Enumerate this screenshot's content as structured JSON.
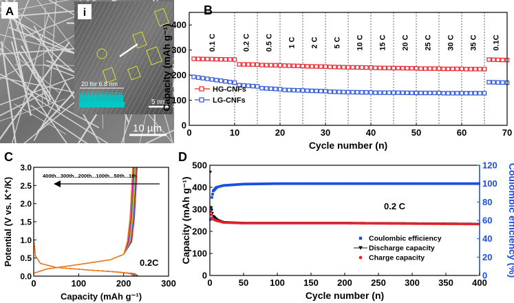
{
  "panels": {
    "A": {
      "label": "A",
      "scale_bar": "10 µm"
    },
    "inset": {
      "label": "i",
      "measure_text": "20 for 6.8 nm",
      "scale_bar": "5 nm"
    }
  },
  "chart_data": [
    {
      "id": "B",
      "type": "scatter",
      "panel_label": "B",
      "xlabel": "Cycle number (n)",
      "ylabel": "Capacity (mAh g⁻¹)",
      "xlim": [
        0,
        70
      ],
      "ylim": [
        0,
        450
      ],
      "xticks": [
        0,
        10,
        20,
        30,
        40,
        50,
        60,
        70
      ],
      "yticks": [
        0,
        100,
        200,
        300,
        400
      ],
      "rates": [
        "0.1 C",
        "0.2 C",
        "0.5 C",
        "1 C",
        "2 C",
        "5 C",
        "10 C",
        "15 C",
        "20 C",
        "25 C",
        "30 C",
        "35 C",
        "0.1C"
      ],
      "dividers": [
        10,
        15,
        20,
        25,
        30,
        35,
        40,
        45,
        50,
        55,
        60,
        65
      ],
      "series": [
        {
          "name": "HG-CNFs",
          "color": "#e8202a",
          "segments": [
            [
              1,
              265
            ],
            [
              10,
              262
            ],
            [
              11,
              243
            ],
            [
              15,
              242
            ],
            [
              16,
              240
            ],
            [
              20,
              239
            ],
            [
              21,
              238
            ],
            [
              25,
              236
            ],
            [
              26,
              235
            ],
            [
              30,
              234
            ],
            [
              31,
              233
            ],
            [
              35,
              231
            ],
            [
              36,
              231
            ],
            [
              40,
              230
            ],
            [
              41,
              229
            ],
            [
              45,
              228
            ],
            [
              46,
              228
            ],
            [
              50,
              227
            ],
            [
              51,
              226
            ],
            [
              55,
              226
            ],
            [
              56,
              225
            ],
            [
              60,
              225
            ],
            [
              61,
              224
            ],
            [
              65,
              224
            ],
            [
              66,
              262
            ],
            [
              70,
              260
            ]
          ]
        },
        {
          "name": "LG-CNFs",
          "color": "#2a52d8",
          "segments": [
            [
              1,
              193
            ],
            [
              10,
              170
            ],
            [
              11,
              160
            ],
            [
              15,
              155
            ],
            [
              16,
              148
            ],
            [
              20,
              144
            ],
            [
              21,
              141
            ],
            [
              25,
              139
            ],
            [
              26,
              138
            ],
            [
              30,
              136
            ],
            [
              31,
              134
            ],
            [
              35,
              132
            ],
            [
              36,
              132
            ],
            [
              40,
              131
            ],
            [
              41,
              130
            ],
            [
              45,
              130
            ],
            [
              46,
              130
            ],
            [
              50,
              129
            ],
            [
              51,
              129
            ],
            [
              55,
              129
            ],
            [
              56,
              128
            ],
            [
              60,
              128
            ],
            [
              61,
              128
            ],
            [
              65,
              128
            ],
            [
              66,
              172
            ],
            [
              70,
              170
            ]
          ]
        }
      ]
    },
    {
      "id": "C",
      "type": "line",
      "panel_label": "C",
      "xlabel": "Capacity (mAh g⁻¹)",
      "ylabel": "Potential (V vs. K⁺/K)",
      "xlim": [
        0,
        300
      ],
      "ylim": [
        0,
        3.0
      ],
      "xticks": [
        0,
        100,
        200,
        300
      ],
      "yticks": [
        0.0,
        0.5,
        1.0,
        1.5,
        2.0,
        2.5,
        3.0
      ],
      "arrow_text": "400th...300th...200th...100th...50th...1th",
      "annotation": "0.2C",
      "series_colors": [
        "#e8202a",
        "#2a52d8",
        "#f0c000",
        "#2aa02a",
        "#e000c8",
        "#ff8000"
      ]
    },
    {
      "id": "D",
      "type": "scatter",
      "panel_label": "D",
      "xlabel": "Cycle number (n)",
      "ylabel_left": "Capacity (mAh g⁻¹)",
      "ylabel_right": "Coulombic efficiency (%)",
      "xlim": [
        0,
        400
      ],
      "ylim_left": [
        0,
        500
      ],
      "ylim_right": [
        0,
        120
      ],
      "xticks": [
        0,
        50,
        100,
        150,
        200,
        250,
        300,
        350,
        400
      ],
      "yticks_left": [
        0,
        100,
        200,
        300,
        400,
        500
      ],
      "yticks_right": [
        0,
        20,
        40,
        60,
        80,
        100,
        120
      ],
      "annotation": "0.2 C",
      "series": [
        {
          "name": "Coulombic efficiency",
          "color": "#1a4fe0",
          "marker": "square",
          "axis": "right",
          "points": [
            [
              1,
              61
            ],
            [
              3,
              85
            ],
            [
              5,
              92
            ],
            [
              10,
              96
            ],
            [
              20,
              98
            ],
            [
              50,
              99.5
            ],
            [
              100,
              100
            ],
            [
              200,
              100
            ],
            [
              300,
              100
            ],
            [
              400,
              100
            ]
          ]
        },
        {
          "name": "Discharge capacity",
          "color": "#111111",
          "marker": "triangle",
          "axis": "left",
          "points": [
            [
              1,
              470
            ],
            [
              2,
              310
            ],
            [
              5,
              270
            ],
            [
              10,
              255
            ],
            [
              20,
              242
            ],
            [
              50,
              238
            ],
            [
              100,
              238
            ],
            [
              200,
              238
            ],
            [
              300,
              236
            ],
            [
              400,
              234
            ]
          ]
        },
        {
          "name": "Charge capacity",
          "color": "#e8202a",
          "marker": "circle",
          "axis": "left",
          "points": [
            [
              1,
              290
            ],
            [
              3,
              262
            ],
            [
              5,
              255
            ],
            [
              10,
              248
            ],
            [
              20,
              240
            ],
            [
              50,
              237
            ],
            [
              100,
              237
            ],
            [
              200,
              237
            ],
            [
              300,
              235
            ],
            [
              400,
              233
            ]
          ]
        }
      ]
    }
  ]
}
